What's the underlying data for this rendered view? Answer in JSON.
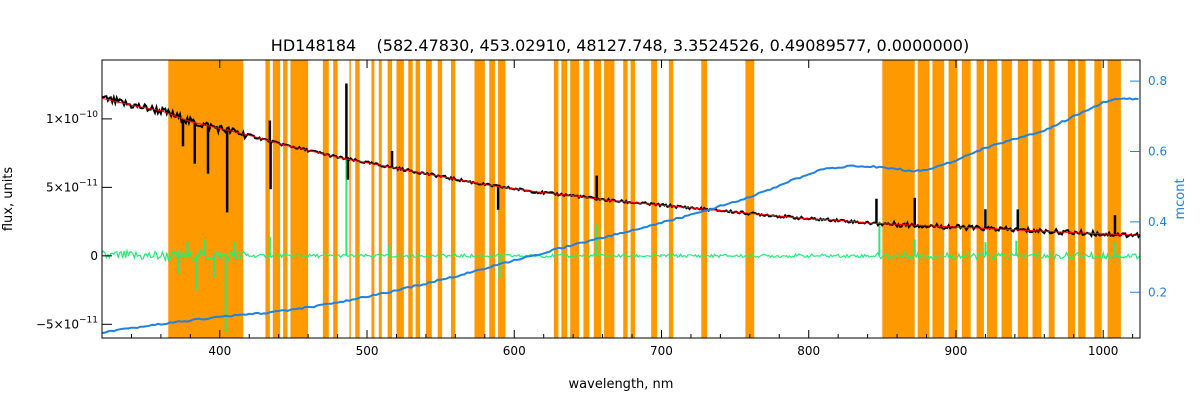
{
  "chart_data": {
    "type": "line",
    "title": "HD148184    (582.47830, 453.02910, 48127.748, 3.3524526, 0.49089577, 0.0000000)",
    "xlabel": "wavelength, nm",
    "ylabel": "flux, units",
    "y2label": "mcont",
    "xlim": [
      320,
      1025
    ],
    "ylim": [
      -6e-11,
      1.43e-10
    ],
    "y2lim": [
      0.07,
      0.86
    ],
    "x_ticks": [
      400,
      500,
      600,
      700,
      800,
      900,
      1000
    ],
    "x_tick_labels": [
      "400",
      "500",
      "600",
      "700",
      "800",
      "900",
      "1000"
    ],
    "y_ticks": [
      -5e-11,
      0,
      5e-11,
      1e-10
    ],
    "y_tick_labels": [
      {
        "mantissa": "−5×10",
        "exp": "−11"
      },
      {
        "mantissa": "0",
        "exp": ""
      },
      {
        "mantissa": "5×10",
        "exp": "−11"
      },
      {
        "mantissa": "1×10",
        "exp": "−10"
      }
    ],
    "y2_ticks": [
      0.2,
      0.4,
      0.6,
      0.8
    ],
    "y2_tick_labels": [
      "0.2",
      "0.4",
      "0.6",
      "0.8"
    ],
    "masked_regions": [
      [
        365,
        416
      ],
      [
        431,
        434
      ],
      [
        436,
        441
      ],
      [
        443,
        446
      ],
      [
        448,
        460
      ],
      [
        470,
        474
      ],
      [
        477,
        480
      ],
      [
        488,
        489
      ],
      [
        492,
        495
      ],
      [
        503,
        505
      ],
      [
        508,
        510
      ],
      [
        514,
        517
      ],
      [
        520,
        525
      ],
      [
        528,
        531
      ],
      [
        533,
        536
      ],
      [
        540,
        544
      ],
      [
        548,
        551
      ],
      [
        557,
        560
      ],
      [
        573,
        580
      ],
      [
        583,
        587
      ],
      [
        589,
        594
      ],
      [
        627,
        630
      ],
      [
        632,
        636
      ],
      [
        638,
        644
      ],
      [
        647,
        651
      ],
      [
        654,
        659
      ],
      [
        661,
        668
      ],
      [
        674,
        677
      ],
      [
        679,
        682
      ],
      [
        693,
        697
      ],
      [
        705,
        708
      ],
      [
        727,
        731
      ],
      [
        757,
        763
      ],
      [
        850,
        872
      ],
      [
        874,
        882
      ],
      [
        884,
        892
      ],
      [
        895,
        901
      ],
      [
        904,
        910
      ],
      [
        914,
        919
      ],
      [
        921,
        928
      ],
      [
        931,
        938
      ],
      [
        942,
        949
      ],
      [
        952,
        958
      ],
      [
        963,
        967
      ],
      [
        976,
        981
      ],
      [
        983,
        988
      ],
      [
        994,
        999
      ],
      [
        1003,
        1012
      ]
    ],
    "series": [
      {
        "color": "#000000",
        "role": "observed flux",
        "x": [
          320,
          340,
          360,
          380,
          400,
          420,
          440,
          460,
          480,
          500,
          520,
          540,
          560,
          580,
          600,
          620,
          640,
          660,
          680,
          700,
          720,
          740,
          760,
          780,
          800,
          820,
          840,
          860,
          880,
          900,
          920,
          940,
          960,
          980,
          1000,
          1025
        ],
        "y": [
          1.15e-10,
          1.1e-10,
          1.06e-10,
          9.8e-11,
          9.3e-11,
          8.8e-11,
          8.2e-11,
          7.7e-11,
          7.2e-11,
          6.8e-11,
          6.4e-11,
          6e-11,
          5.6e-11,
          5.2e-11,
          4.9e-11,
          4.6e-11,
          4.4e-11,
          4.1e-11,
          3.9e-11,
          3.7e-11,
          3.5e-11,
          3.3e-11,
          3.1e-11,
          2.9e-11,
          2.7e-11,
          2.6e-11,
          2.4e-11,
          2.3e-11,
          2.2e-11,
          2.1e-11,
          2e-11,
          1.9e-11,
          1.8e-11,
          1.7e-11,
          1.6e-11,
          1.5e-11
        ],
        "spikes": [
          [
            375,
            -2e-11
          ],
          [
            383,
            -3e-11
          ],
          [
            392,
            -3.5e-11
          ],
          [
            405,
            -6e-11
          ],
          [
            434,
            1.5e-11
          ],
          [
            434.5,
            -3.5e-11
          ],
          [
            486,
            5.5e-11
          ],
          [
            487,
            -1.5e-11
          ],
          [
            517,
            1.2e-11
          ],
          [
            589,
            -1.7e-11
          ],
          [
            656,
            1.7e-11
          ],
          [
            846,
            1.8e-11
          ],
          [
            872,
            2e-11
          ],
          [
            920,
            1.4e-11
          ],
          [
            942,
            1.5e-11
          ],
          [
            1008,
            1.4e-11
          ]
        ]
      },
      {
        "color": "#ff0000",
        "role": "model",
        "x": [
          320,
          340,
          360,
          380,
          400,
          420,
          440,
          460,
          480,
          500,
          520,
          540,
          560,
          580,
          600,
          620,
          640,
          660,
          680,
          700,
          720,
          740,
          760,
          780,
          800,
          820,
          840,
          860,
          880,
          900,
          920,
          940,
          960,
          980,
          1000,
          1025
        ],
        "y": [
          1.15e-10,
          1.1e-10,
          1.06e-10,
          9.8e-11,
          9.3e-11,
          8.8e-11,
          8.2e-11,
          7.7e-11,
          7.2e-11,
          6.8e-11,
          6.4e-11,
          6e-11,
          5.6e-11,
          5.2e-11,
          4.9e-11,
          4.6e-11,
          4.4e-11,
          4.1e-11,
          3.9e-11,
          3.7e-11,
          3.5e-11,
          3.3e-11,
          3.1e-11,
          2.9e-11,
          2.7e-11,
          2.6e-11,
          2.4e-11,
          2.3e-11,
          2.2e-11,
          2.1e-11,
          2e-11,
          1.9e-11,
          1.8e-11,
          1.7e-11,
          1.6e-11,
          1.5e-11
        ]
      },
      {
        "color": "#22ee77",
        "role": "residual",
        "x": [
          320,
          1025
        ],
        "y": [
          0,
          0
        ],
        "spikes": [
          [
            372,
            -1.3e-11
          ],
          [
            378,
            1e-11
          ],
          [
            384,
            -2.5e-11
          ],
          [
            390,
            1.2e-11
          ],
          [
            396,
            -1.6e-11
          ],
          [
            404,
            -5.5e-11
          ],
          [
            410,
            1e-11
          ],
          [
            434,
            1.4e-11
          ],
          [
            486,
            8e-11
          ],
          [
            515,
            8e-12
          ],
          [
            590,
            -1.6e-11
          ],
          [
            656,
            2.3e-11
          ],
          [
            848,
            2.5e-11
          ],
          [
            872,
            1.2e-11
          ],
          [
            920,
            1e-11
          ],
          [
            941,
            1.1e-11
          ],
          [
            1008,
            1e-11
          ]
        ]
      },
      {
        "color": "#1f82e0",
        "role": "mcont",
        "axis": "right",
        "x": [
          320,
          360,
          400,
          440,
          480,
          520,
          560,
          600,
          640,
          680,
          720,
          760,
          790,
          810,
          830,
          850,
          870,
          880,
          900,
          920,
          940,
          960,
          980,
          1000,
          1010,
          1025
        ],
        "y": [
          0.085,
          0.11,
          0.13,
          0.145,
          0.17,
          0.205,
          0.245,
          0.29,
          0.335,
          0.375,
          0.42,
          0.47,
          0.52,
          0.55,
          0.56,
          0.555,
          0.545,
          0.548,
          0.575,
          0.61,
          0.635,
          0.66,
          0.7,
          0.74,
          0.75,
          0.75
        ]
      }
    ]
  }
}
